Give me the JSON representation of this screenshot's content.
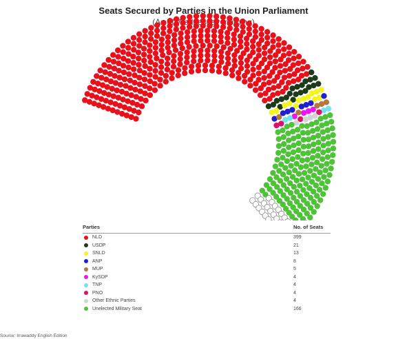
{
  "chart_data": {
    "type": "parliament",
    "title": "Seats Secured by Parties in the Union Parliament",
    "subtitle": "(As of Wednesday morning)",
    "legend_header": {
      "party": "Parties",
      "seats": "No. of Seats"
    },
    "series": [
      {
        "name": "NLD",
        "value": 399,
        "color": "#e8101b"
      },
      {
        "name": "USDP",
        "value": 21,
        "color": "#1d3a1b"
      },
      {
        "name": "SNLD",
        "value": 13,
        "color": "#f4f41e"
      },
      {
        "name": "ANP",
        "value": 8,
        "color": "#1f1fcf"
      },
      {
        "name": "MUP",
        "value": 5,
        "color": "#b5763f"
      },
      {
        "name": "KySDP",
        "value": 4,
        "color": "#ee16ee"
      },
      {
        "name": "TNP",
        "value": 4,
        "color": "#74e3f0"
      },
      {
        "name": "PNO",
        "value": 4,
        "color": "#d8136a"
      },
      {
        "name": "Other Ethnic Parties",
        "value": 4,
        "color": "#d3d3d3"
      },
      {
        "name": "Unelected Military Seat",
        "value": 166,
        "color": "#4fc23a"
      }
    ],
    "undeclared": {
      "color": "#ffffff",
      "stroke": "#888888"
    }
  },
  "source": "Source: Irrawaddy English Edition"
}
